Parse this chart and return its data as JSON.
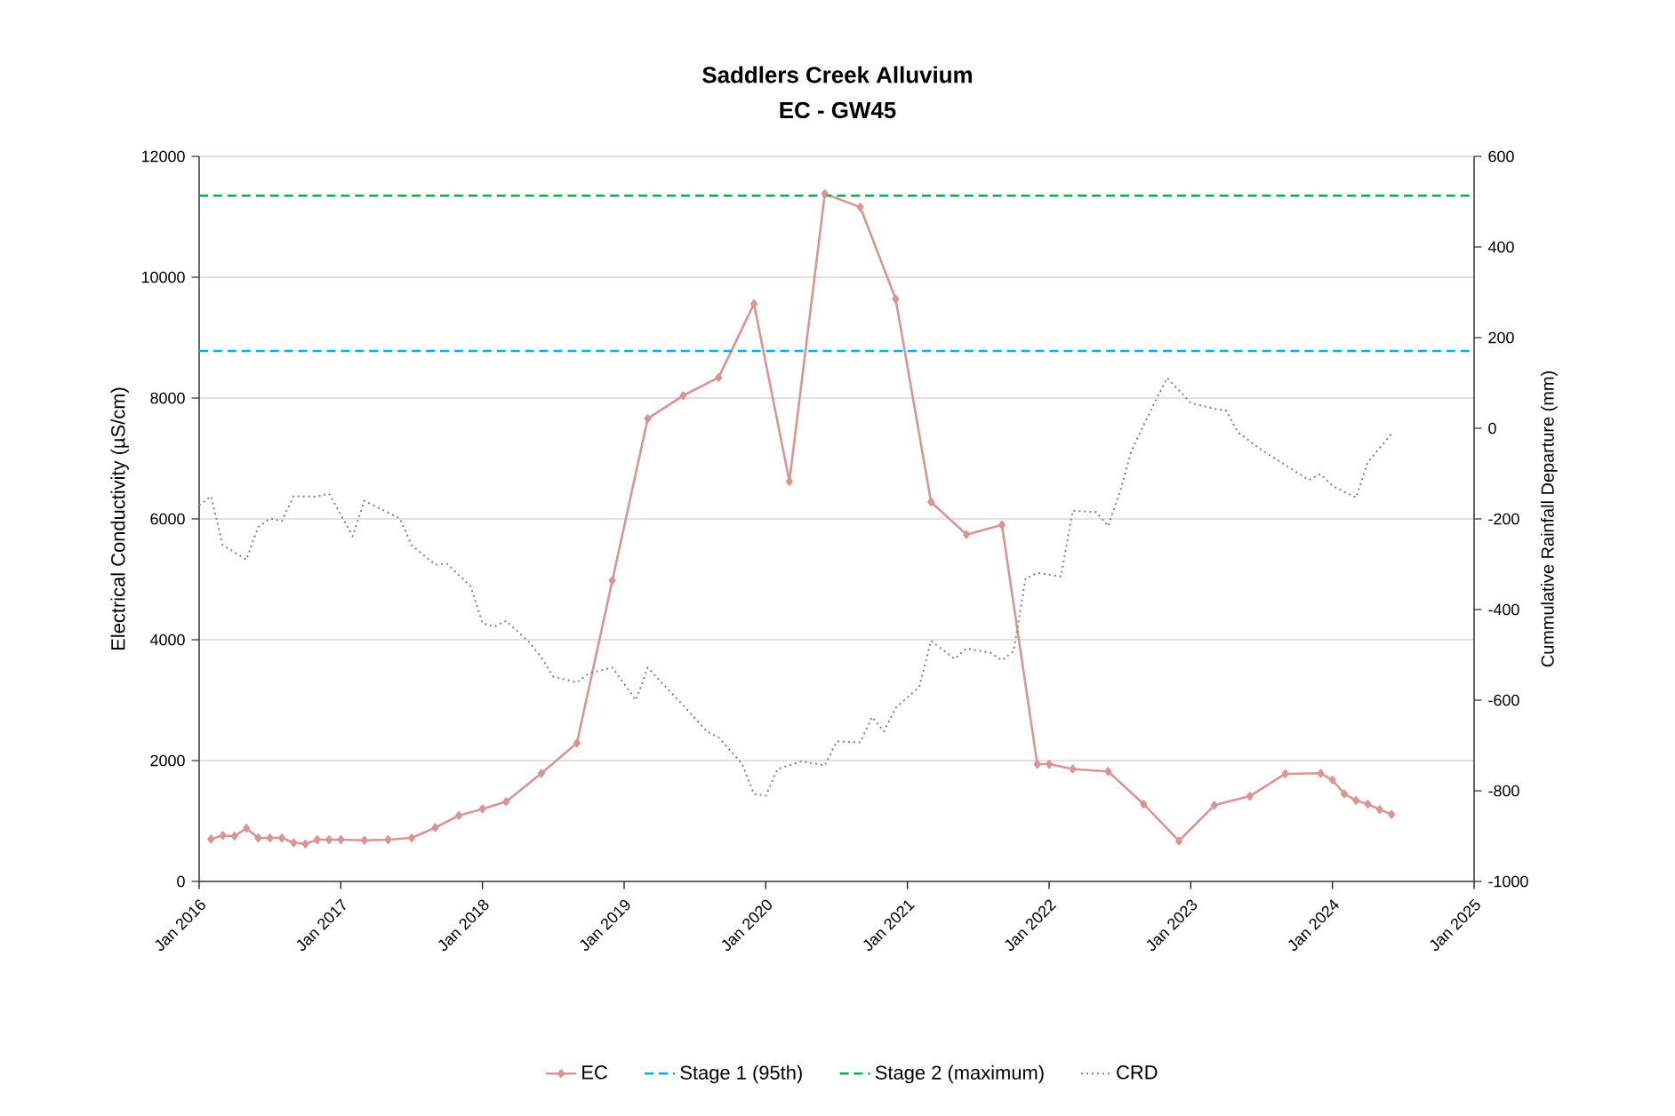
{
  "chart_data": {
    "type": "line",
    "title": "Saddlers Creek Alluvium",
    "subtitle": "EC - GW45",
    "ylabel": "Electrical Conductivity (µS/cm)",
    "y2label": "Cummulative Rainfall Departure (mm)",
    "xlim": [
      "2016-01",
      "2025-01"
    ],
    "xticks": [
      {
        "value": "2016-01",
        "label": "Jan 2016"
      },
      {
        "value": "2017-01",
        "label": "Jan 2017"
      },
      {
        "value": "2018-01",
        "label": "Jan 2018"
      },
      {
        "value": "2019-01",
        "label": "Jan 2019"
      },
      {
        "value": "2020-01",
        "label": "Jan 2020"
      },
      {
        "value": "2021-01",
        "label": "Jan 2021"
      },
      {
        "value": "2022-01",
        "label": "Jan 2022"
      },
      {
        "value": "2023-01",
        "label": "Jan 2023"
      },
      {
        "value": "2024-01",
        "label": "Jan 2024"
      },
      {
        "value": "2025-01",
        "label": "Jan 2025"
      }
    ],
    "ylim": [
      0,
      12000
    ],
    "yticks": [
      0,
      2000,
      4000,
      6000,
      8000,
      10000,
      12000
    ],
    "y2lim": [
      -1000,
      600
    ],
    "y2ticks": [
      -1000,
      -800,
      -600,
      -400,
      -200,
      0,
      200,
      400,
      600
    ],
    "grid": "y",
    "legend": "bottom",
    "series": [
      {
        "name": "EC",
        "color": "#d99594",
        "marker": "diamond",
        "line_style": "solid",
        "x": [
          "2016-02",
          "2016-03",
          "2016-04",
          "2016-05",
          "2016-06",
          "2016-07",
          "2016-08",
          "2016-09",
          "2016-10",
          "2016-11",
          "2016-12",
          "2017-01",
          "2017-03",
          "2017-05",
          "2017-07",
          "2017-09",
          "2017-11",
          "2018-01",
          "2018-03",
          "2018-06",
          "2018-09",
          "2018-12",
          "2019-03",
          "2019-06",
          "2019-09",
          "2019-12",
          "2020-03",
          "2020-06",
          "2020-09",
          "2020-12",
          "2021-03",
          "2021-06",
          "2021-09",
          "2021-12",
          "2022-01",
          "2022-03",
          "2022-06",
          "2022-09",
          "2022-12",
          "2023-03",
          "2023-06",
          "2023-09",
          "2023-12",
          "2024-01",
          "2024-02",
          "2024-03",
          "2024-04",
          "2024-05",
          "2024-06"
        ],
        "values": [
          700,
          760,
          750,
          880,
          720,
          720,
          720,
          640,
          620,
          690,
          690,
          690,
          680,
          690,
          720,
          890,
          1090,
          1200,
          1320,
          1790,
          2290,
          4980,
          7660,
          8040,
          8340,
          9560,
          6620,
          11380,
          11160,
          9640,
          6280,
          5740,
          5900,
          1940,
          1940,
          1860,
          1820,
          1280,
          670,
          1260,
          1410,
          1780,
          1790,
          1680,
          1450,
          1340,
          1280,
          1190,
          1110
        ]
      },
      {
        "name": "CRD",
        "axis": "y2",
        "color": "#7f7f7f",
        "marker": "none",
        "line_style": "dotted",
        "x": [
          "2016-01",
          "2016-02",
          "2016-03",
          "2016-05",
          "2016-06",
          "2016-07",
          "2016-08",
          "2016-09",
          "2016-11",
          "2016-12",
          "2017-02",
          "2017-03",
          "2017-04",
          "2017-06",
          "2017-07",
          "2017-09",
          "2017-10",
          "2017-12",
          "2018-01",
          "2018-02",
          "2018-03",
          "2018-05",
          "2018-06",
          "2018-07",
          "2018-09",
          "2018-10",
          "2018-12",
          "2019-02",
          "2019-03",
          "2019-05",
          "2019-06",
          "2019-08",
          "2019-09",
          "2019-11",
          "2019-12",
          "2020-01",
          "2020-02",
          "2020-04",
          "2020-06",
          "2020-07",
          "2020-09",
          "2020-10",
          "2020-11",
          "2020-12",
          "2021-02",
          "2021-03",
          "2021-05",
          "2021-06",
          "2021-08",
          "2021-09",
          "2021-10",
          "2021-11",
          "2021-12",
          "2022-02",
          "2022-03",
          "2022-05",
          "2022-06",
          "2022-07",
          "2022-08",
          "2022-10",
          "2022-11",
          "2023-01",
          "2023-03",
          "2023-04",
          "2023-05",
          "2023-07",
          "2023-09",
          "2023-11",
          "2023-12",
          "2024-01",
          "2024-03",
          "2024-04",
          "2024-06"
        ],
        "values": [
          -170,
          -150,
          -258,
          -290,
          -218,
          -199,
          -205,
          -150,
          -151,
          -144,
          -238,
          -160,
          -173,
          -199,
          -258,
          -301,
          -299,
          -349,
          -430,
          -438,
          -425,
          -473,
          -506,
          -548,
          -561,
          -541,
          -528,
          -600,
          -528,
          -584,
          -611,
          -669,
          -682,
          -741,
          -807,
          -811,
          -752,
          -735,
          -744,
          -691,
          -693,
          -637,
          -669,
          -617,
          -571,
          -469,
          -509,
          -486,
          -495,
          -512,
          -492,
          -332,
          -319,
          -327,
          -182,
          -185,
          -216,
          -140,
          -48,
          60,
          111,
          56,
          43,
          39,
          -9,
          -48,
          -81,
          -114,
          -101,
          -127,
          -153,
          -75,
          -12
        ]
      }
    ],
    "ref_lines": [
      {
        "axis": "y",
        "value": 8780,
        "label": "Stage 1 (95th)",
        "color": "#00b0f0",
        "line_style": "dashed"
      },
      {
        "axis": "y",
        "value": 11350,
        "label": "Stage 2 (maximum)",
        "color": "#00b050",
        "line_style": "dashed"
      }
    ]
  }
}
